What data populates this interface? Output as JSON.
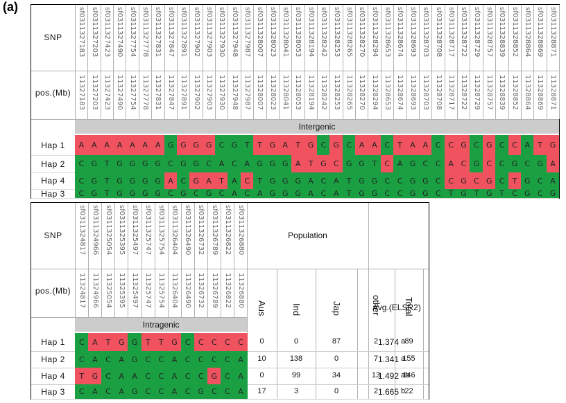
{
  "figure_label": "(a)",
  "labels": {
    "snp": "SNP",
    "pos": "pos.(Mb)",
    "intergenic": "Intergenic",
    "intragenic": "Intragenic",
    "population": "Population",
    "avg_header": "Avg.(ELSR2)"
  },
  "colors": {
    "green": "#1aa043",
    "red": "#f0525f",
    "gray_band": "#cccccc"
  },
  "top_table": {
    "snps": [
      "sf0311327183",
      "sf0311327203",
      "sf0311327423",
      "sf0311327490",
      "sf0311327754",
      "sf0311327778",
      "sf0311327831",
      "sf0311327847",
      "sf0311327891",
      "sf0311327902",
      "sf0311327903",
      "sf0311327930",
      "sf0311327948",
      "sf0311327987",
      "sf0311328007",
      "sf0311328023",
      "sf0311328041",
      "sf0311328053",
      "sf0311328194",
      "sf0311328242",
      "sf0311328253",
      "sf0311328265",
      "sf0311328270",
      "sf0311328294",
      "sf0311328653",
      "sf0311328674",
      "sf0311328693",
      "sf0311328703",
      "sf0311328708",
      "sf0311328717",
      "sf0311328722",
      "sf0311328729",
      "sf0311328757",
      "sf0311328839",
      "sf0311328852",
      "sf0311328864",
      "sf0311328869",
      "sf0311328871"
    ],
    "positions": [
      "11327183",
      "11327203",
      "11327423",
      "11327490",
      "11327754",
      "11327778",
      "11327831",
      "11327847",
      "11327891",
      "11327902",
      "11327903",
      "11327930",
      "11327948",
      "11327987",
      "11328007",
      "11328023",
      "11328041",
      "11328053",
      "11328194",
      "11328242",
      "11328253",
      "11328265",
      "11328270",
      "11328294",
      "11328653",
      "11328674",
      "11328693",
      "11328703",
      "11328708",
      "11328717",
      "11328722",
      "11328729",
      "11328757",
      "11328839",
      "11328852",
      "11328864",
      "11328869",
      "11328871"
    ],
    "haplotypes": [
      {
        "name": "Hap 1",
        "alleles": [
          "A",
          "A",
          "A",
          "A",
          "A",
          "A",
          "A",
          "G",
          "G",
          "G",
          "G",
          "C",
          "G",
          "T",
          "T",
          "G",
          "A",
          "T",
          "G",
          "C",
          "G",
          "C",
          "A",
          "A",
          "C",
          "T",
          "A",
          "A",
          "C",
          "C",
          "G",
          "C",
          "G",
          "C",
          "C",
          "A",
          "T",
          "G"
        ],
        "colors": "rrrrrrrgrrrgggrrrrrgrgrrgrrrgrrgrgrgrr"
      },
      {
        "name": "Hap 2",
        "alleles": [
          "C",
          "G",
          "T",
          "G",
          "G",
          "G",
          "G",
          "C",
          "G",
          "G",
          "C",
          "A",
          "C",
          "A",
          "G",
          "G",
          "G",
          "A",
          "T",
          "G",
          "C",
          "G",
          "G",
          "T",
          "C",
          "A",
          "G",
          "C",
          "C",
          "A",
          "C",
          "G",
          "C",
          "C",
          "G",
          "C",
          "G",
          "A"
        ],
        "colors": "gggggggggggggggggrrrrgggrggggrrgrggggr"
      },
      {
        "name": "Hap 4",
        "alleles": [
          "C",
          "G",
          "T",
          "G",
          "G",
          "G",
          "G",
          "A",
          "C",
          "G",
          "A",
          "T",
          "A",
          "C",
          "T",
          "G",
          "G",
          "G",
          "A",
          "C",
          "A",
          "T",
          "G",
          "G",
          "C",
          "C",
          "G",
          "G",
          "C",
          "C",
          "G",
          "C",
          "G",
          "C",
          "T",
          "G",
          "C",
          "A"
        ],
        "colors": "gggggggrgrrrgrgggggggggggggggrrrrgrggg"
      },
      {
        "name": "Hap 3",
        "alleles": [
          "C",
          "G",
          "T",
          "G",
          "G",
          "G",
          "G",
          "C",
          "G",
          "C",
          "G",
          "C",
          "A",
          "C",
          "A",
          "G",
          "G",
          "G",
          "A",
          "C",
          "A",
          "T",
          "G",
          "G",
          "C",
          "C",
          "G",
          "G",
          "C",
          "T",
          "G",
          "T",
          "G",
          "T",
          "C",
          "G",
          "C",
          "G"
        ],
        "colors": "gggggggggggggggggggggggggggggggggggggg"
      }
    ]
  },
  "bottom_table": {
    "snps": [
      "sf0311324817",
      "sf0311324966",
      "sf0311325054",
      "sf0311325395",
      "sf0311325497",
      "sf0311325747",
      "sf0311325754",
      "sf0311326404",
      "sf0311326490",
      "sf0311326732",
      "sf0311326789",
      "sf0311326822",
      "sf0311326880"
    ],
    "positions": [
      "11324817",
      "11324966",
      "11325054",
      "11325395",
      "11325497",
      "11325747",
      "11325754",
      "11326404",
      "11326490",
      "11326732",
      "11326789",
      "11326822",
      "11326880"
    ],
    "pop_columns": [
      "Aus",
      "Ind",
      "Jap",
      "other",
      "Total"
    ],
    "haplotypes": [
      {
        "name": "Hap 1",
        "alleles": [
          "C",
          "A",
          "T",
          "G",
          "G",
          "T",
          "T",
          "G",
          "C",
          "C",
          "C",
          "C",
          "C"
        ],
        "colors": "grrrgrrrgrrrr",
        "pop": [
          "0",
          "0",
          "87",
          "2",
          "89"
        ],
        "avg": "1.374",
        "sig": "a"
      },
      {
        "name": "Hap 2",
        "alleles": [
          "C",
          "A",
          "C",
          "A",
          "G",
          "C",
          "C",
          "A",
          "C",
          "C",
          "C",
          "C",
          "A"
        ],
        "colors": "ggggggggggggg",
        "pop": [
          "10",
          "138",
          "0",
          "7",
          "155"
        ],
        "avg": "1.341",
        "sig": "a"
      },
      {
        "name": "Hap 4",
        "alleles": [
          "T",
          "G",
          "C",
          "A",
          "A",
          "C",
          "C",
          "A",
          "C",
          "C",
          "G",
          "C",
          "A"
        ],
        "colors": "rrggggggggrgg",
        "pop": [
          "0",
          "99",
          "34",
          "13",
          "146"
        ],
        "avg": "1.492",
        "sig": "ab"
      },
      {
        "name": "Hap 3",
        "alleles": [
          "C",
          "A",
          "C",
          "A",
          "G",
          "C",
          "C",
          "A",
          "C",
          "G",
          "C",
          "C",
          "A"
        ],
        "colors": "ggggggggggggg",
        "pop": [
          "17",
          "3",
          "0",
          "2",
          "22"
        ],
        "avg": "1.665",
        "sig": "b"
      }
    ]
  }
}
